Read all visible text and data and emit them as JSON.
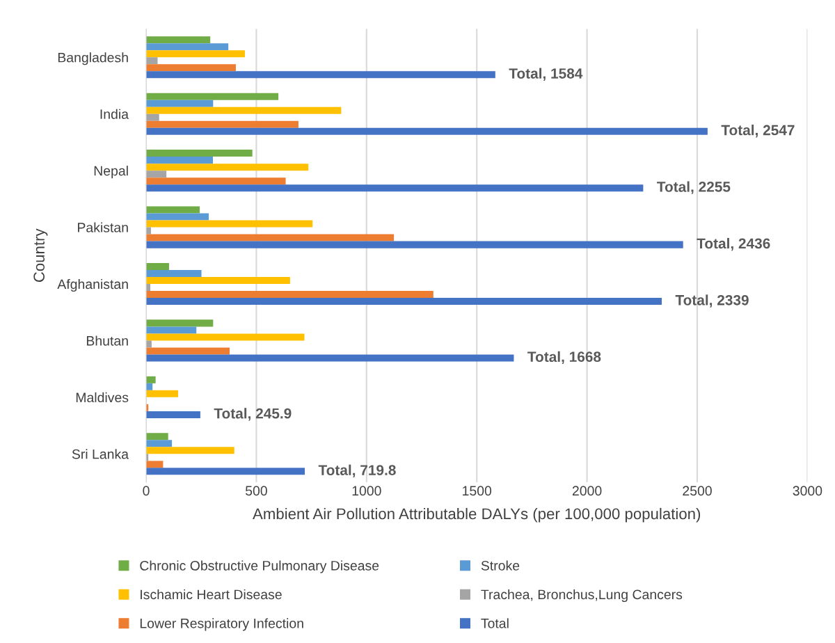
{
  "chart_data": {
    "type": "bar",
    "orientation": "horizontal",
    "xlabel": "Ambient Air Pollution Attributable DALYs (per 100,000 population)",
    "ylabel": "Country",
    "categories": [
      "Bangladesh",
      "India",
      "Nepal",
      "Pakistan",
      "Afghanistan",
      "Bhutan",
      "Maldives",
      "Sri Lanka"
    ],
    "series": [
      {
        "name": "Chronic Obstructive Pulmonary Disease",
        "color": "#70ad47",
        "values": [
          291,
          600,
          482,
          243,
          104,
          304,
          43,
          100
        ]
      },
      {
        "name": "Stroke",
        "color": "#5b9bd5",
        "values": [
          373,
          304,
          303,
          284,
          251,
          228,
          29,
          117
        ]
      },
      {
        "name": "Ischamic Heart Disease",
        "color": "#ffc000",
        "values": [
          448,
          885,
          736,
          755,
          653,
          718,
          145,
          400
        ]
      },
      {
        "name": "Trachea, Bronchus,Lung Cancers",
        "color": "#a5a5a5",
        "values": [
          52,
          59,
          92,
          22,
          19,
          25,
          null,
          10
        ]
      },
      {
        "name": "Lower Respiratory Infection",
        "color": "#ed7d31",
        "values": [
          407,
          691,
          633,
          1124,
          1303,
          379,
          10,
          77
        ]
      },
      {
        "name": "Total",
        "color": "#4472c4",
        "values": [
          1584,
          2547,
          2255,
          2436,
          2339,
          1668,
          245.9,
          719.8
        ],
        "value_labels": [
          "Total, 1584",
          "Total, 2547",
          "Total, 2255",
          "Total, 2436",
          "Total, 2339",
          "Total, 1668",
          "Total, 245.9",
          "Total, 719.8"
        ]
      }
    ],
    "xlim": [
      0,
      3000
    ],
    "xticks": [
      0,
      500,
      1000,
      1500,
      2000,
      2500,
      3000
    ],
    "grid": "x",
    "legend": "bottom"
  }
}
